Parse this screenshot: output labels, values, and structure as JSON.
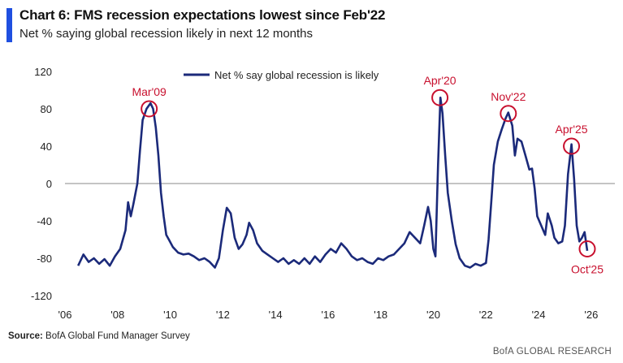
{
  "header": {
    "title": "Chart 6: FMS recession expectations lowest since Feb'22",
    "subtitle": "Net % saying global recession likely in next 12 months"
  },
  "footer": {
    "source_label": "Source:",
    "source_text": "BofA Global Fund Manager Survey",
    "brand": "BofA GLOBAL RESEARCH"
  },
  "colors": {
    "series": "#1b2a7a",
    "annotation": "#c8102e",
    "accent": "#1f4fe0",
    "zero_line": "#888888"
  },
  "chart_data": {
    "type": "line",
    "xlim": [
      2006.0,
      2026.9
    ],
    "ylim": [
      -120,
      120
    ],
    "x_ticks": [
      {
        "value": 2006,
        "label": "'06"
      },
      {
        "value": 2008,
        "label": "'08"
      },
      {
        "value": 2010,
        "label": "'10"
      },
      {
        "value": 2012,
        "label": "'12"
      },
      {
        "value": 2014,
        "label": "'14"
      },
      {
        "value": 2016,
        "label": "'16"
      },
      {
        "value": 2018,
        "label": "'18"
      },
      {
        "value": 2020,
        "label": "'20"
      },
      {
        "value": 2022,
        "label": "'22"
      },
      {
        "value": 2024,
        "label": "'24"
      },
      {
        "value": 2026,
        "label": "'26"
      }
    ],
    "y_ticks": [
      {
        "value": 120,
        "label": "120"
      },
      {
        "value": 80,
        "label": "80"
      },
      {
        "value": 40,
        "label": "40"
      },
      {
        "value": 0,
        "label": "0"
      },
      {
        "value": -40,
        "label": "-40"
      },
      {
        "value": -80,
        "label": "-80"
      },
      {
        "value": -120,
        "label": "-120"
      }
    ],
    "zero_line": true,
    "grid": false,
    "legend": {
      "position": "top",
      "entries": [
        "Net % say global recession is likely"
      ]
    },
    "series": [
      {
        "name": "Net % say global recession is likely",
        "points": [
          [
            2006.5,
            -88
          ],
          [
            2006.7,
            -76
          ],
          [
            2006.9,
            -84
          ],
          [
            2007.1,
            -80
          ],
          [
            2007.3,
            -86
          ],
          [
            2007.5,
            -81
          ],
          [
            2007.7,
            -88
          ],
          [
            2007.9,
            -78
          ],
          [
            2008.1,
            -70
          ],
          [
            2008.3,
            -50
          ],
          [
            2008.4,
            -20
          ],
          [
            2008.5,
            -35
          ],
          [
            2008.6,
            -22
          ],
          [
            2008.75,
            0
          ],
          [
            2008.85,
            35
          ],
          [
            2008.95,
            68
          ],
          [
            2009.1,
            80
          ],
          [
            2009.25,
            86
          ],
          [
            2009.35,
            80
          ],
          [
            2009.45,
            60
          ],
          [
            2009.55,
            30
          ],
          [
            2009.65,
            -10
          ],
          [
            2009.75,
            -35
          ],
          [
            2009.85,
            -55
          ],
          [
            2009.95,
            -60
          ],
          [
            2010.1,
            -68
          ],
          [
            2010.3,
            -74
          ],
          [
            2010.5,
            -76
          ],
          [
            2010.7,
            -75
          ],
          [
            2010.9,
            -78
          ],
          [
            2011.1,
            -82
          ],
          [
            2011.3,
            -80
          ],
          [
            2011.5,
            -84
          ],
          [
            2011.7,
            -90
          ],
          [
            2011.85,
            -80
          ],
          [
            2012.0,
            -50
          ],
          [
            2012.15,
            -26
          ],
          [
            2012.3,
            -32
          ],
          [
            2012.45,
            -58
          ],
          [
            2012.6,
            -70
          ],
          [
            2012.75,
            -65
          ],
          [
            2012.9,
            -55
          ],
          [
            2013.0,
            -42
          ],
          [
            2013.15,
            -50
          ],
          [
            2013.3,
            -64
          ],
          [
            2013.5,
            -72
          ],
          [
            2013.7,
            -76
          ],
          [
            2013.9,
            -80
          ],
          [
            2014.1,
            -84
          ],
          [
            2014.3,
            -80
          ],
          [
            2014.5,
            -86
          ],
          [
            2014.7,
            -82
          ],
          [
            2014.9,
            -86
          ],
          [
            2015.1,
            -80
          ],
          [
            2015.3,
            -86
          ],
          [
            2015.5,
            -78
          ],
          [
            2015.7,
            -84
          ],
          [
            2015.9,
            -76
          ],
          [
            2016.1,
            -70
          ],
          [
            2016.3,
            -74
          ],
          [
            2016.5,
            -64
          ],
          [
            2016.7,
            -70
          ],
          [
            2016.9,
            -78
          ],
          [
            2017.1,
            -82
          ],
          [
            2017.3,
            -80
          ],
          [
            2017.5,
            -84
          ],
          [
            2017.7,
            -86
          ],
          [
            2017.9,
            -80
          ],
          [
            2018.1,
            -82
          ],
          [
            2018.3,
            -78
          ],
          [
            2018.5,
            -76
          ],
          [
            2018.7,
            -70
          ],
          [
            2018.9,
            -64
          ],
          [
            2019.1,
            -52
          ],
          [
            2019.3,
            -58
          ],
          [
            2019.5,
            -64
          ],
          [
            2019.65,
            -45
          ],
          [
            2019.8,
            -25
          ],
          [
            2019.9,
            -40
          ],
          [
            2020.0,
            -70
          ],
          [
            2020.08,
            -78
          ],
          [
            2020.18,
            20
          ],
          [
            2020.27,
            92
          ],
          [
            2020.35,
            75
          ],
          [
            2020.45,
            30
          ],
          [
            2020.55,
            -10
          ],
          [
            2020.7,
            -40
          ],
          [
            2020.85,
            -65
          ],
          [
            2021.0,
            -80
          ],
          [
            2021.2,
            -88
          ],
          [
            2021.4,
            -90
          ],
          [
            2021.6,
            -86
          ],
          [
            2021.8,
            -88
          ],
          [
            2022.0,
            -85
          ],
          [
            2022.1,
            -60
          ],
          [
            2022.2,
            -20
          ],
          [
            2022.3,
            20
          ],
          [
            2022.45,
            45
          ],
          [
            2022.6,
            58
          ],
          [
            2022.75,
            70
          ],
          [
            2022.85,
            76
          ],
          [
            2023.0,
            62
          ],
          [
            2023.1,
            30
          ],
          [
            2023.2,
            48
          ],
          [
            2023.35,
            45
          ],
          [
            2023.5,
            30
          ],
          [
            2023.65,
            15
          ],
          [
            2023.75,
            16
          ],
          [
            2023.85,
            -5
          ],
          [
            2023.95,
            -35
          ],
          [
            2024.1,
            -45
          ],
          [
            2024.25,
            -55
          ],
          [
            2024.35,
            -32
          ],
          [
            2024.5,
            -45
          ],
          [
            2024.6,
            -58
          ],
          [
            2024.75,
            -64
          ],
          [
            2024.9,
            -62
          ],
          [
            2025.0,
            -45
          ],
          [
            2025.12,
            10
          ],
          [
            2025.25,
            42
          ],
          [
            2025.35,
            5
          ],
          [
            2025.45,
            -45
          ],
          [
            2025.55,
            -62
          ],
          [
            2025.65,
            -58
          ],
          [
            2025.75,
            -52
          ],
          [
            2025.85,
            -72
          ]
        ]
      }
    ],
    "annotations": [
      {
        "label": "Mar'09",
        "x": 2009.2,
        "y": 80,
        "label_side": "above"
      },
      {
        "label": "Apr'20",
        "x": 2020.25,
        "y": 92,
        "label_side": "above"
      },
      {
        "label": "Nov'22",
        "x": 2022.85,
        "y": 75,
        "label_side": "above"
      },
      {
        "label": "Apr'25",
        "x": 2025.25,
        "y": 40,
        "label_side": "above"
      },
      {
        "label": "Oct'25",
        "x": 2025.85,
        "y": -70,
        "label_side": "below"
      }
    ]
  }
}
